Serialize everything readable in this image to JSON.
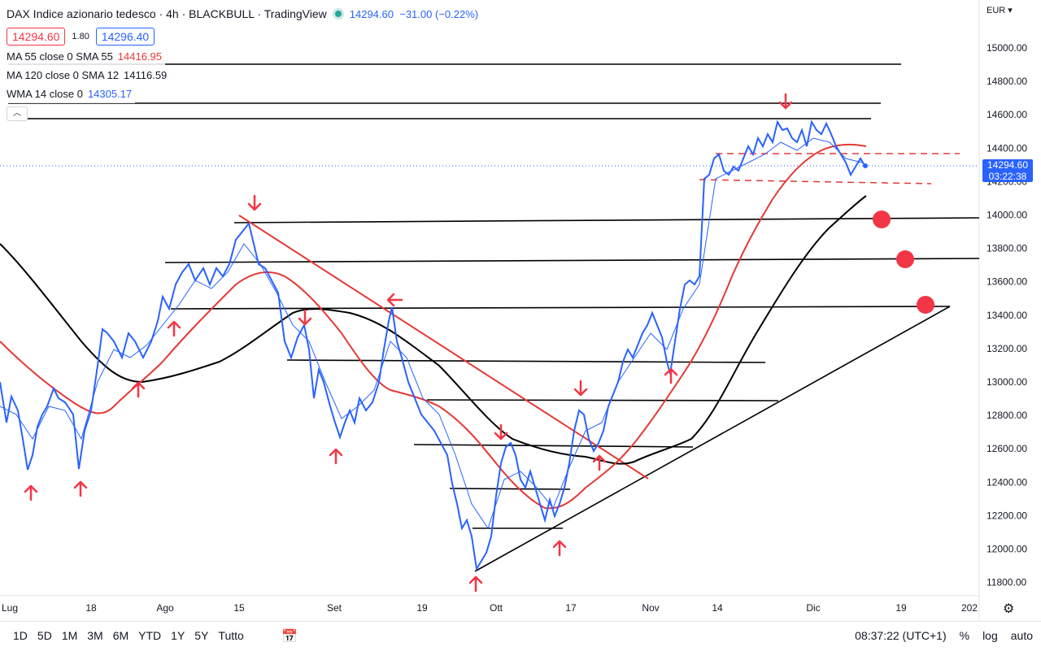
{
  "header": {
    "title": "DAX Indice azionario tedesco · 4h · BLACKBULL · TradingView",
    "last": "14294.60",
    "change": "−31.00 (−0.22%)",
    "sell": "14294.60",
    "spread": "1.80",
    "buy": "14296.40"
  },
  "indicators": [
    {
      "label": "MA 55 close 0 SMA 55",
      "value": "14416.95",
      "color": "#e53935"
    },
    {
      "label": "MA 120 close 0 SMA 12",
      "value": "14116.59",
      "color": "#000000"
    },
    {
      "label": "WMA 14 close 0",
      "value": "14305.17",
      "color": "#2962ff"
    }
  ],
  "collapse_icon": "chevron-up-icon",
  "price_axis": {
    "currency": "EUR",
    "ticks": [
      "15000.00",
      "14800.00",
      "14600.00",
      "14400.00",
      "14200.00",
      "14000.00",
      "13800.00",
      "13600.00",
      "13400.00",
      "13200.00",
      "13000.00",
      "12800.00",
      "12600.00",
      "12400.00",
      "12200.00",
      "12000.00",
      "11800.00"
    ],
    "current_price": "14294.60",
    "countdown": "03:22:38"
  },
  "time_axis": [
    "Lug",
    "18",
    "Ago",
    "15",
    "Set",
    "19",
    "Ott",
    "17",
    "Nov",
    "14",
    "Dic",
    "19",
    "202"
  ],
  "bottom_bar": {
    "timeframes": [
      "1D",
      "5D",
      "1M",
      "3M",
      "6M",
      "YTD",
      "1Y",
      "5Y",
      "Tutto"
    ],
    "clock": "08:37:22 (UTC+1)",
    "percent": "%",
    "log": "log",
    "auto": "auto"
  },
  "colors": {
    "price": "#2962ff",
    "ma55": "#e53935",
    "ma120": "#000000",
    "marker": "#f23645"
  },
  "chart_data": {
    "type": "line",
    "x": [
      "Lug",
      "18",
      "Ago",
      "15",
      "Set",
      "19",
      "Ott",
      "17",
      "Nov",
      "14",
      "Dic"
    ],
    "series": [
      {
        "name": "DAX",
        "values": [
          12550,
          12950,
          13350,
          13900,
          13150,
          12700,
          11900,
          12950,
          13150,
          14100,
          14300
        ]
      },
      {
        "name": "MA 55",
        "values": [
          13100,
          12800,
          13200,
          13650,
          13400,
          12950,
          12300,
          12550,
          13100,
          13800,
          14420
        ]
      },
      {
        "name": "MA 120",
        "values": [
          13800,
          13050,
          13150,
          13350,
          13400,
          13100,
          12600,
          12520,
          12650,
          13700,
          14117
        ]
      }
    ],
    "ylim": [
      11800,
      15000
    ]
  }
}
